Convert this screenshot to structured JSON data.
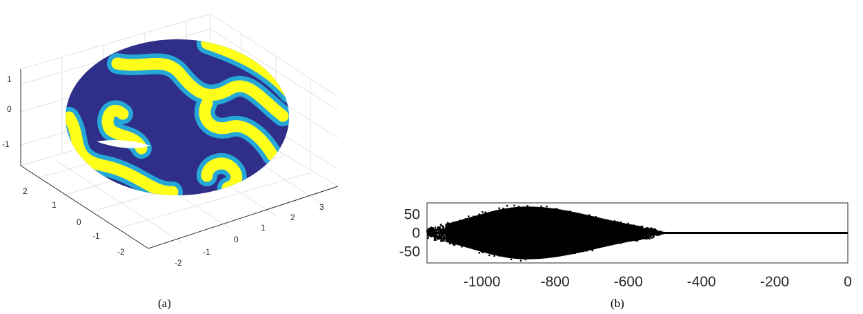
{
  "captions": {
    "a": "(a)",
    "b": "(b)"
  },
  "colors": {
    "surface_base": "#2f2f8a",
    "pattern_core": "#ffff1a",
    "pattern_edge": "#25a8d8",
    "axes": "#262626",
    "grid": "#e2e2e2",
    "points": "#000000"
  },
  "chart_data": [
    {
      "type": "surface3d",
      "colormap": "parula",
      "z_ticks": [
        "-1",
        "0",
        "1"
      ],
      "y_ticks": [
        "-2",
        "-1",
        "0",
        "1",
        "2"
      ],
      "x_ticks": [
        "-2",
        "-1",
        "0",
        "1",
        "2",
        "3"
      ],
      "grid": true
    },
    {
      "type": "scatter",
      "x_ticks": [
        "-1000",
        "-800",
        "-600",
        "-400",
        "-200",
        "0"
      ],
      "y_ticks": [
        "50",
        "0",
        "-50"
      ],
      "xlim": [
        -1150,
        0
      ],
      "ylim": [
        -80,
        80
      ],
      "grid": false,
      "point_cloud": {
        "x_range": [
          -1150,
          -500
        ],
        "peak_x": -880,
        "peak_half_width": 80,
        "real_axis_points_x_range": [
          -500,
          0
        ]
      }
    }
  ]
}
